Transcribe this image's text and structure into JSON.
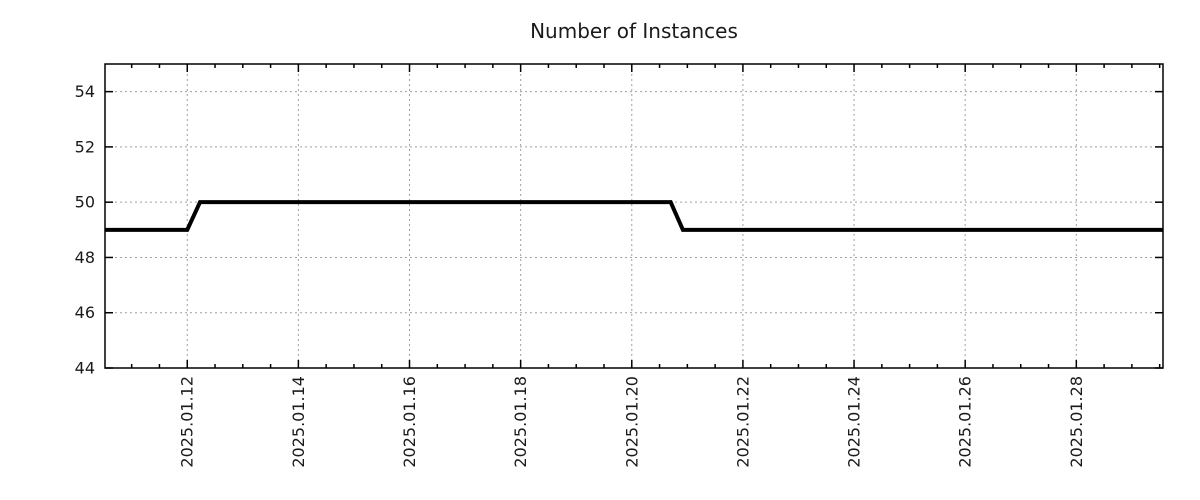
{
  "chart_data": {
    "type": "line",
    "title": "Number of Instances",
    "xlabel": "",
    "ylabel": "",
    "x_value_unit": "day of January 2025 (fractional)",
    "xlim": [
      10.52,
      29.56
    ],
    "ylim": [
      44,
      55
    ],
    "y_ticks": [
      44,
      46,
      48,
      50,
      52,
      54
    ],
    "x_ticks": [
      {
        "value": 12,
        "label": "2025.01.12"
      },
      {
        "value": 14,
        "label": "2025.01.14"
      },
      {
        "value": 16,
        "label": "2025.01.16"
      },
      {
        "value": 18,
        "label": "2025.01.18"
      },
      {
        "value": 20,
        "label": "2025.01.20"
      },
      {
        "value": 22,
        "label": "2025.01.22"
      },
      {
        "value": 24,
        "label": "2025.01.24"
      },
      {
        "value": 26,
        "label": "2025.01.26"
      },
      {
        "value": 28,
        "label": "2025.01.28"
      }
    ],
    "x_minor_tick_step": 0.5,
    "grid": true,
    "legend": "none",
    "series": [
      {
        "name": "instances",
        "color": "#000000",
        "points": [
          {
            "x": 10.52,
            "y": 49
          },
          {
            "x": 12.0,
            "y": 49
          },
          {
            "x": 12.23,
            "y": 50
          },
          {
            "x": 20.7,
            "y": 50
          },
          {
            "x": 20.92,
            "y": 49
          },
          {
            "x": 29.56,
            "y": 49
          }
        ]
      }
    ],
    "colors": {
      "line": "#000000",
      "grid": "#a0a0a0",
      "axis": "#000000",
      "text": "#1a1a1a",
      "background": "#ffffff"
    }
  }
}
